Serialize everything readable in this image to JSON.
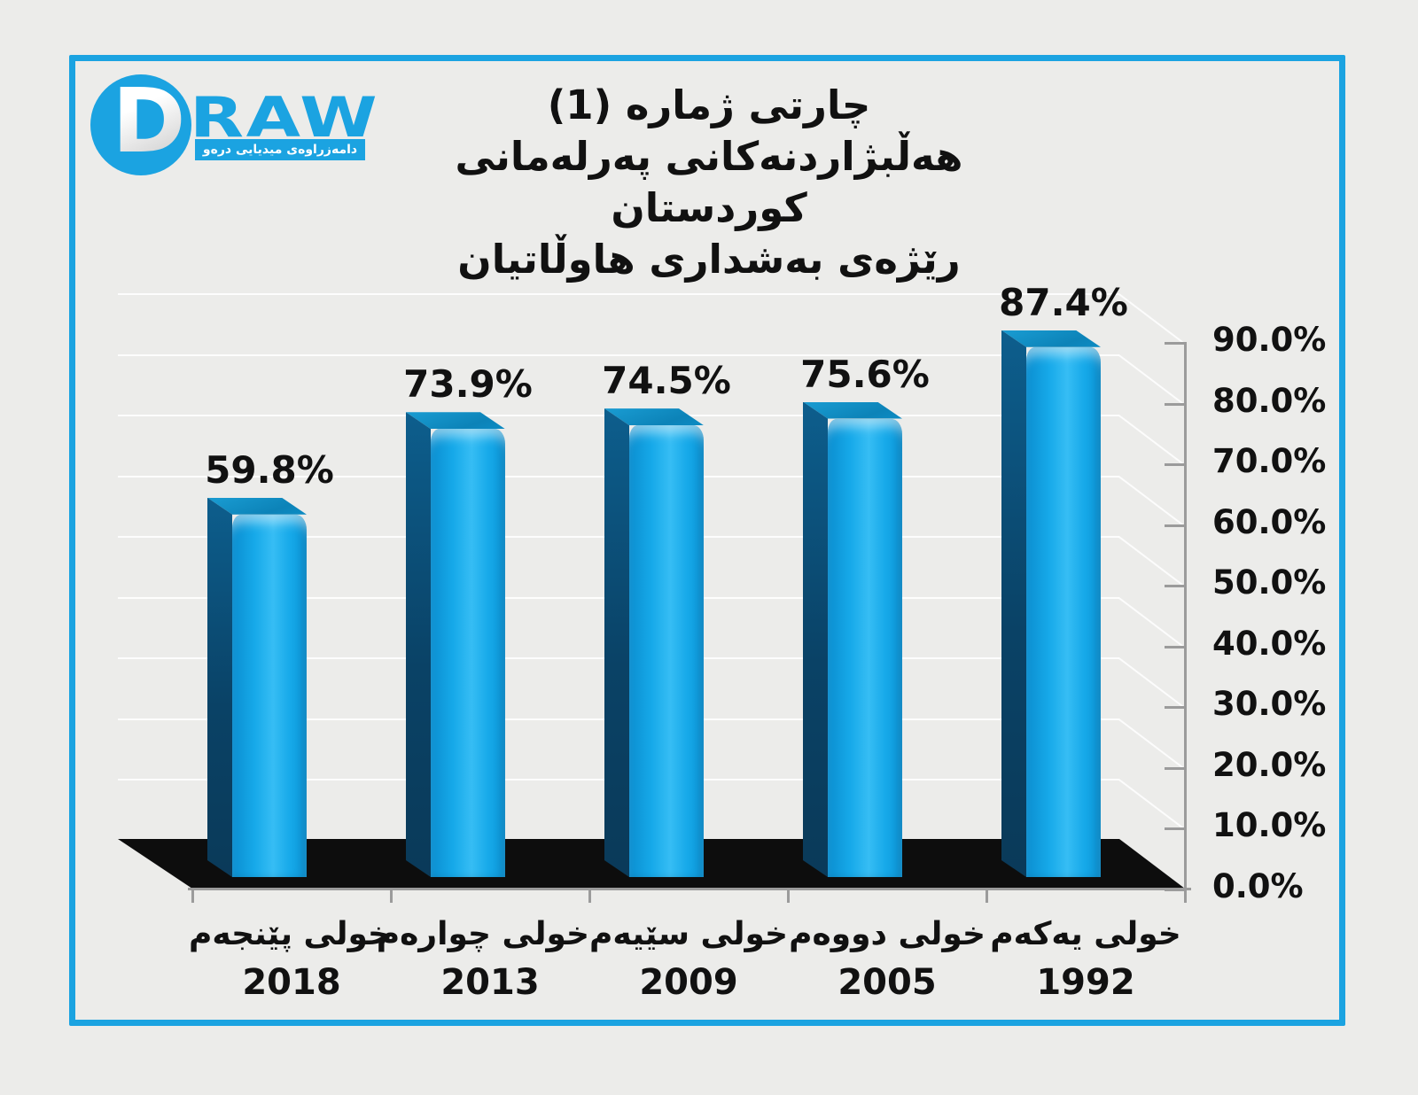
{
  "colors": {
    "accent": "#1ba3e1",
    "background": "#ececea",
    "bar_face": "#16a9e9",
    "bar_side": "#0a4266",
    "bar_top": "#0c83b8",
    "floor": "#0d0d0d",
    "axis": "#9b9b9b",
    "text": "#111111"
  },
  "logo": {
    "letter_d": "D",
    "word_raw": "RAW",
    "tagline": "دامەزراوەی میدیایی درەو"
  },
  "title": {
    "line1": "چارتی ژماره (1)",
    "line2": "هەڵبژاردنەکانی پەرلەمانی کوردستان",
    "line3": "رێژەی بەشداری هاوڵاتیان"
  },
  "chart_data": {
    "type": "bar",
    "style": "3d",
    "title": "چارتی ژماره (1) — هەڵبژاردنەکانی پەرلەمانی کوردستان — رێژەی بەشداری هاوڵاتیان",
    "categories": [
      {
        "name": "خولی پێنجەم",
        "year": "2018"
      },
      {
        "name": "خولی چوارەم",
        "year": "2013"
      },
      {
        "name": "خولی سێیەم",
        "year": "2009"
      },
      {
        "name": "خولی دووەم",
        "year": "2005"
      },
      {
        "name": "خولی یەکەم",
        "year": "1992"
      }
    ],
    "values": [
      59.8,
      73.9,
      74.5,
      75.6,
      87.4
    ],
    "value_labels": [
      "59.8%",
      "73.9%",
      "74.5%",
      "75.6%",
      "87.4%"
    ],
    "ylabel": "",
    "xlabel": "",
    "ylim": [
      0,
      90
    ],
    "ytick_values": [
      0,
      10,
      20,
      30,
      40,
      50,
      60,
      70,
      80,
      90
    ],
    "yticks": [
      "0.0%",
      "10.0%",
      "20.0%",
      "30.0%",
      "40.0%",
      "50.0%",
      "60.0%",
      "70.0%",
      "80.0%",
      "90.0%"
    ],
    "axis_side": "right",
    "grid": true,
    "legend": false
  }
}
